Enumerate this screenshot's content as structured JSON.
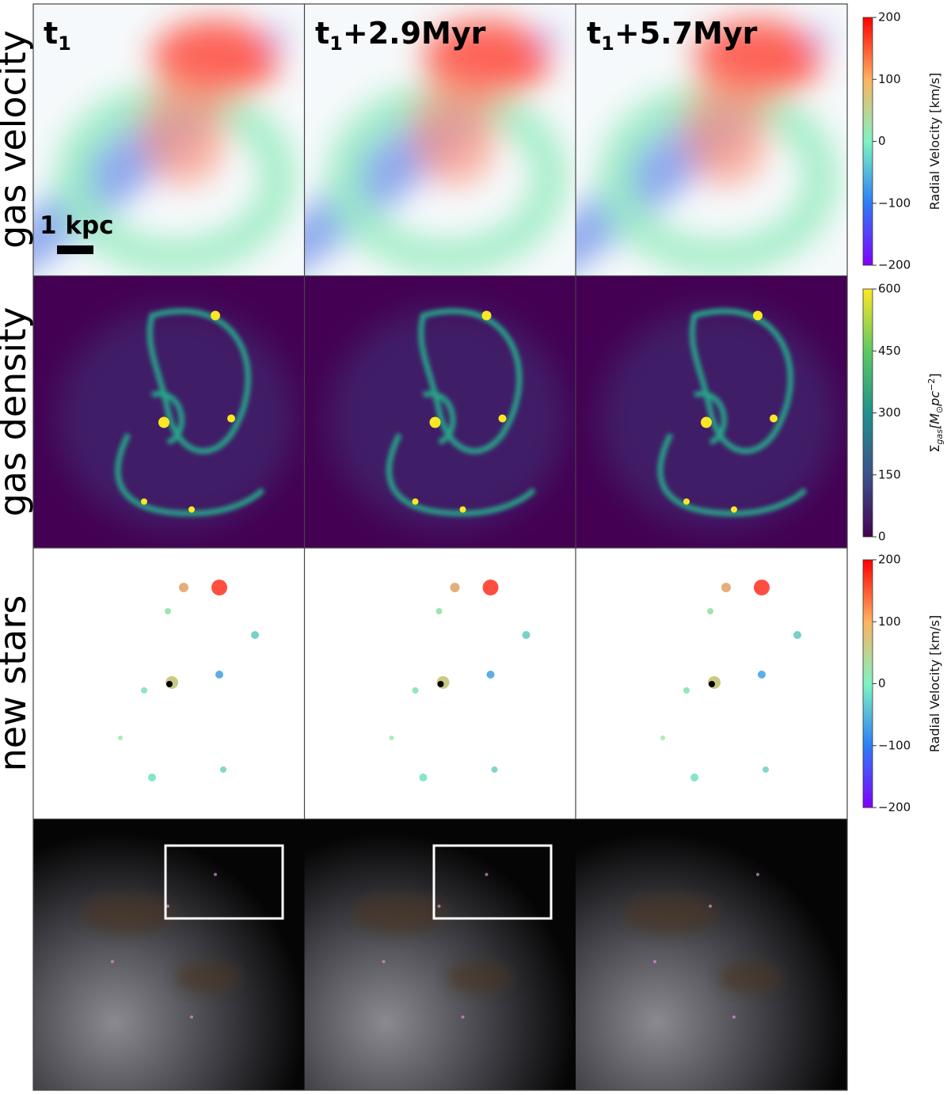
{
  "row_labels": [
    "gas velocity",
    "gas density",
    "new stars"
  ],
  "column_titles": [
    {
      "main": "t",
      "sub": "1",
      "suffix": ""
    },
    {
      "main": "t",
      "sub": "1",
      "suffix": "+2.9Myr"
    },
    {
      "main": "t",
      "sub": "1",
      "suffix": "+5.7Myr"
    }
  ],
  "scale_bar": "1 kpc",
  "colorbars": [
    {
      "label": "Radial Velocity [km/s]",
      "lim": [
        -200,
        200
      ],
      "ticks": [
        200,
        100,
        0,
        {
          "value": -100,
          "label": "−100"
        },
        {
          "value": -200,
          "label": "−200"
        }
      ]
    },
    {
      "label_parts": {
        "symbol": "Σ",
        "sub": "gas",
        "open": "[M",
        "unit_sub": "⊙",
        "unit": "pc",
        "sup": "−2",
        "close": "]"
      },
      "lim": [
        0,
        600
      ],
      "ticks": [
        600,
        450,
        300,
        150,
        0
      ]
    },
    {
      "label": "Radial Velocity [km/s]",
      "lim": [
        -200,
        200
      ],
      "ticks": [
        200,
        100,
        0,
        {
          "value": -100,
          "label": "−100"
        },
        {
          "value": -200,
          "label": "−200"
        }
      ]
    }
  ]
}
